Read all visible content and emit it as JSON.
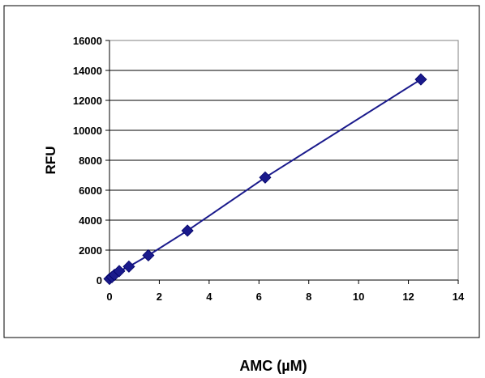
{
  "chart_data": {
    "type": "scatter",
    "xlabel": "AMC (µM)",
    "ylabel": "RFU",
    "xlim": [
      0,
      14
    ],
    "ylim": [
      0,
      16000
    ],
    "x_ticks": [
      0,
      2,
      4,
      6,
      8,
      10,
      12,
      14
    ],
    "y_ticks": [
      0,
      2000,
      4000,
      6000,
      8000,
      10000,
      12000,
      14000,
      16000
    ],
    "grid": "horizontal",
    "legend": "none",
    "series": [
      {
        "x": [
          0,
          0.1,
          0.2,
          0.39,
          0.78,
          1.56,
          3.13,
          6.25,
          12.5
        ],
        "y": [
          80,
          200,
          350,
          600,
          900,
          1650,
          3300,
          6850,
          13400
        ],
        "color": "#1a1a8c",
        "marker": "diamond",
        "line": true
      }
    ]
  }
}
